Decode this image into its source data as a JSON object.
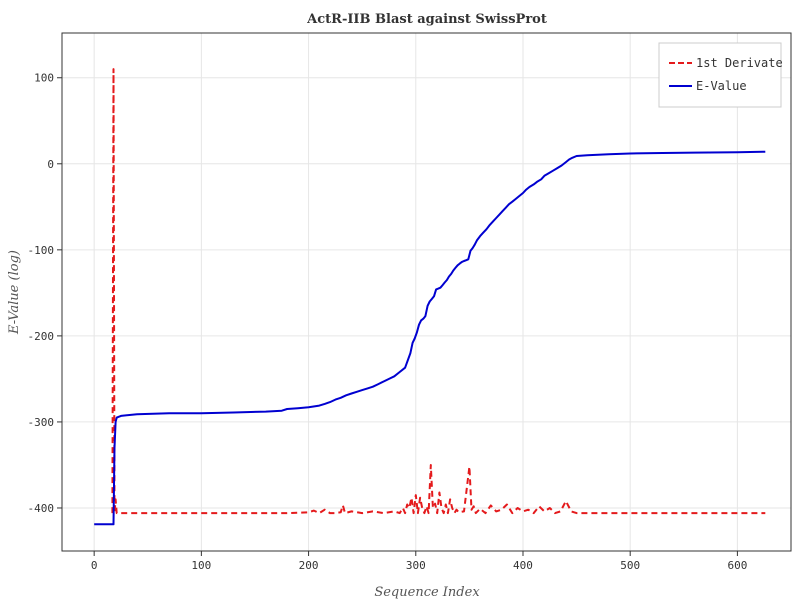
{
  "chart_data": {
    "type": "line",
    "title": "ActR-IIB Blast against SwissProt",
    "xlabel": "Sequence Index",
    "ylabel": "E-Value (log)",
    "xlim": [
      -30,
      650
    ],
    "ylim": [
      -450,
      152
    ],
    "xticks": [
      0,
      100,
      200,
      300,
      400,
      500,
      600
    ],
    "yticks": [
      100,
      0,
      -100,
      -200,
      -300,
      -400
    ],
    "grid": true,
    "legend_position": "top-right",
    "series": [
      {
        "name": "1st Derivate",
        "color": "#e41a1c",
        "style": "dashed",
        "x": [
          17,
          18,
          19,
          20,
          21,
          22,
          60,
          120,
          180,
          200,
          205,
          210,
          215,
          220,
          225,
          230,
          232,
          234,
          240,
          250,
          260,
          270,
          280,
          285,
          288,
          290,
          292,
          294,
          296,
          298,
          300,
          302,
          304,
          306,
          308,
          310,
          312,
          314,
          316,
          318,
          320,
          322,
          324,
          326,
          328,
          330,
          332,
          334,
          336,
          338,
          340,
          345,
          350,
          352,
          354,
          356,
          360,
          365,
          370,
          375,
          380,
          385,
          390,
          395,
          400,
          405,
          410,
          415,
          420,
          425,
          430,
          435,
          440,
          445,
          450,
          500,
          560,
          626
        ],
        "y": [
          -406,
          110,
          -406,
          -390,
          -406,
          -406,
          -406,
          -406,
          -406,
          -405,
          -403,
          -406,
          -402,
          -406,
          -406,
          -405,
          -397,
          -406,
          -404,
          -406,
          -404,
          -406,
          -404,
          -406,
          -400,
          -406,
          -396,
          -400,
          -388,
          -406,
          -385,
          -406,
          -388,
          -400,
          -406,
          -398,
          -406,
          -350,
          -400,
          -395,
          -406,
          -382,
          -400,
          -406,
          -396,
          -406,
          -390,
          -400,
          -406,
          -402,
          -405,
          -404,
          -352,
          -402,
          -398,
          -406,
          -401,
          -406,
          -397,
          -404,
          -402,
          -396,
          -406,
          -400,
          -404,
          -402,
          -406,
          -398,
          -404,
          -400,
          -406,
          -404,
          -392,
          -404,
          -406,
          -406,
          -406,
          -406
        ]
      },
      {
        "name": "E-Value",
        "color": "#0000d0",
        "style": "solid",
        "x": [
          0,
          18,
          19,
          20,
          21,
          25,
          40,
          70,
          100,
          130,
          160,
          175,
          180,
          190,
          200,
          210,
          215,
          220,
          225,
          230,
          235,
          240,
          245,
          250,
          255,
          260,
          265,
          270,
          275,
          280,
          285,
          290,
          295,
          297,
          299,
          301,
          303,
          305,
          307,
          309,
          311,
          313,
          315,
          317,
          319,
          321,
          323,
          325,
          327,
          329,
          331,
          333,
          335,
          337,
          339,
          341,
          343,
          345,
          347,
          349,
          351,
          353,
          355,
          357,
          360,
          363,
          366,
          369,
          372,
          375,
          378,
          381,
          384,
          387,
          390,
          393,
          396,
          400,
          403,
          406,
          410,
          413,
          417,
          420,
          424,
          428,
          432,
          436,
          440,
          443,
          446,
          450,
          460,
          480,
          500,
          530,
          560,
          600,
          626
        ],
        "y": [
          -419,
          -419,
          -330,
          -300,
          -295,
          -293,
          -291,
          -290,
          -290,
          -289,
          -288,
          -287,
          -285,
          -284,
          -283,
          -281,
          -279,
          -277,
          -274,
          -272,
          -269,
          -267,
          -265,
          -263,
          -261,
          -259,
          -256,
          -253,
          -250,
          -247,
          -242,
          -237,
          -220,
          -208,
          -203,
          -196,
          -187,
          -182,
          -180,
          -177,
          -165,
          -160,
          -157,
          -154,
          -146,
          -145,
          -144,
          -141,
          -138,
          -135,
          -131,
          -128,
          -124,
          -121,
          -118,
          -116,
          -114,
          -113,
          -112,
          -111,
          -101,
          -98,
          -94,
          -89,
          -84,
          -80,
          -76,
          -71,
          -67,
          -63,
          -59,
          -55,
          -51,
          -47,
          -44,
          -41,
          -38,
          -34,
          -30,
          -27,
          -24,
          -21,
          -18,
          -14,
          -11,
          -8,
          -5,
          -2,
          2,
          5,
          7,
          9,
          10,
          11,
          12,
          12.5,
          13,
          13.5,
          14
        ]
      }
    ]
  }
}
